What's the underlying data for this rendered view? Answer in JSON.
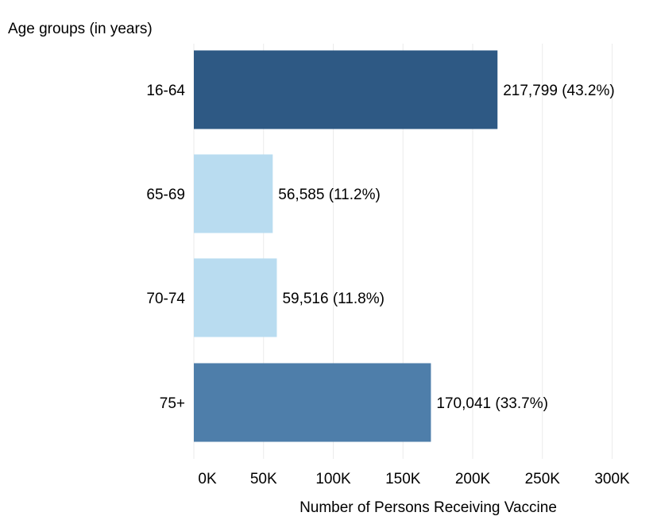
{
  "chart_data": {
    "type": "bar",
    "orientation": "horizontal",
    "ylabel": "Age groups (in years)",
    "xlabel": "Number of Persons Receiving Vaccine",
    "categories": [
      "16-64",
      "65-69",
      "70-74",
      "75+"
    ],
    "values": [
      217799,
      56585,
      59516,
      170041
    ],
    "data_labels": [
      "217,799 (43.2%)",
      "56,585 (11.2%)",
      "59,516 (11.8%)",
      "170,041 (33.7%)"
    ],
    "bar_colors": [
      "#2e5984",
      "#b9dcf0",
      "#b9dcf0",
      "#4e7eaa"
    ],
    "xlim": [
      0,
      330000
    ],
    "xticks": [
      0,
      50000,
      100000,
      150000,
      200000,
      250000,
      300000
    ],
    "xtick_labels": [
      "0K",
      "50K",
      "100K",
      "150K",
      "200K",
      "250K",
      "300K"
    ],
    "grid": true,
    "legend": false
  }
}
